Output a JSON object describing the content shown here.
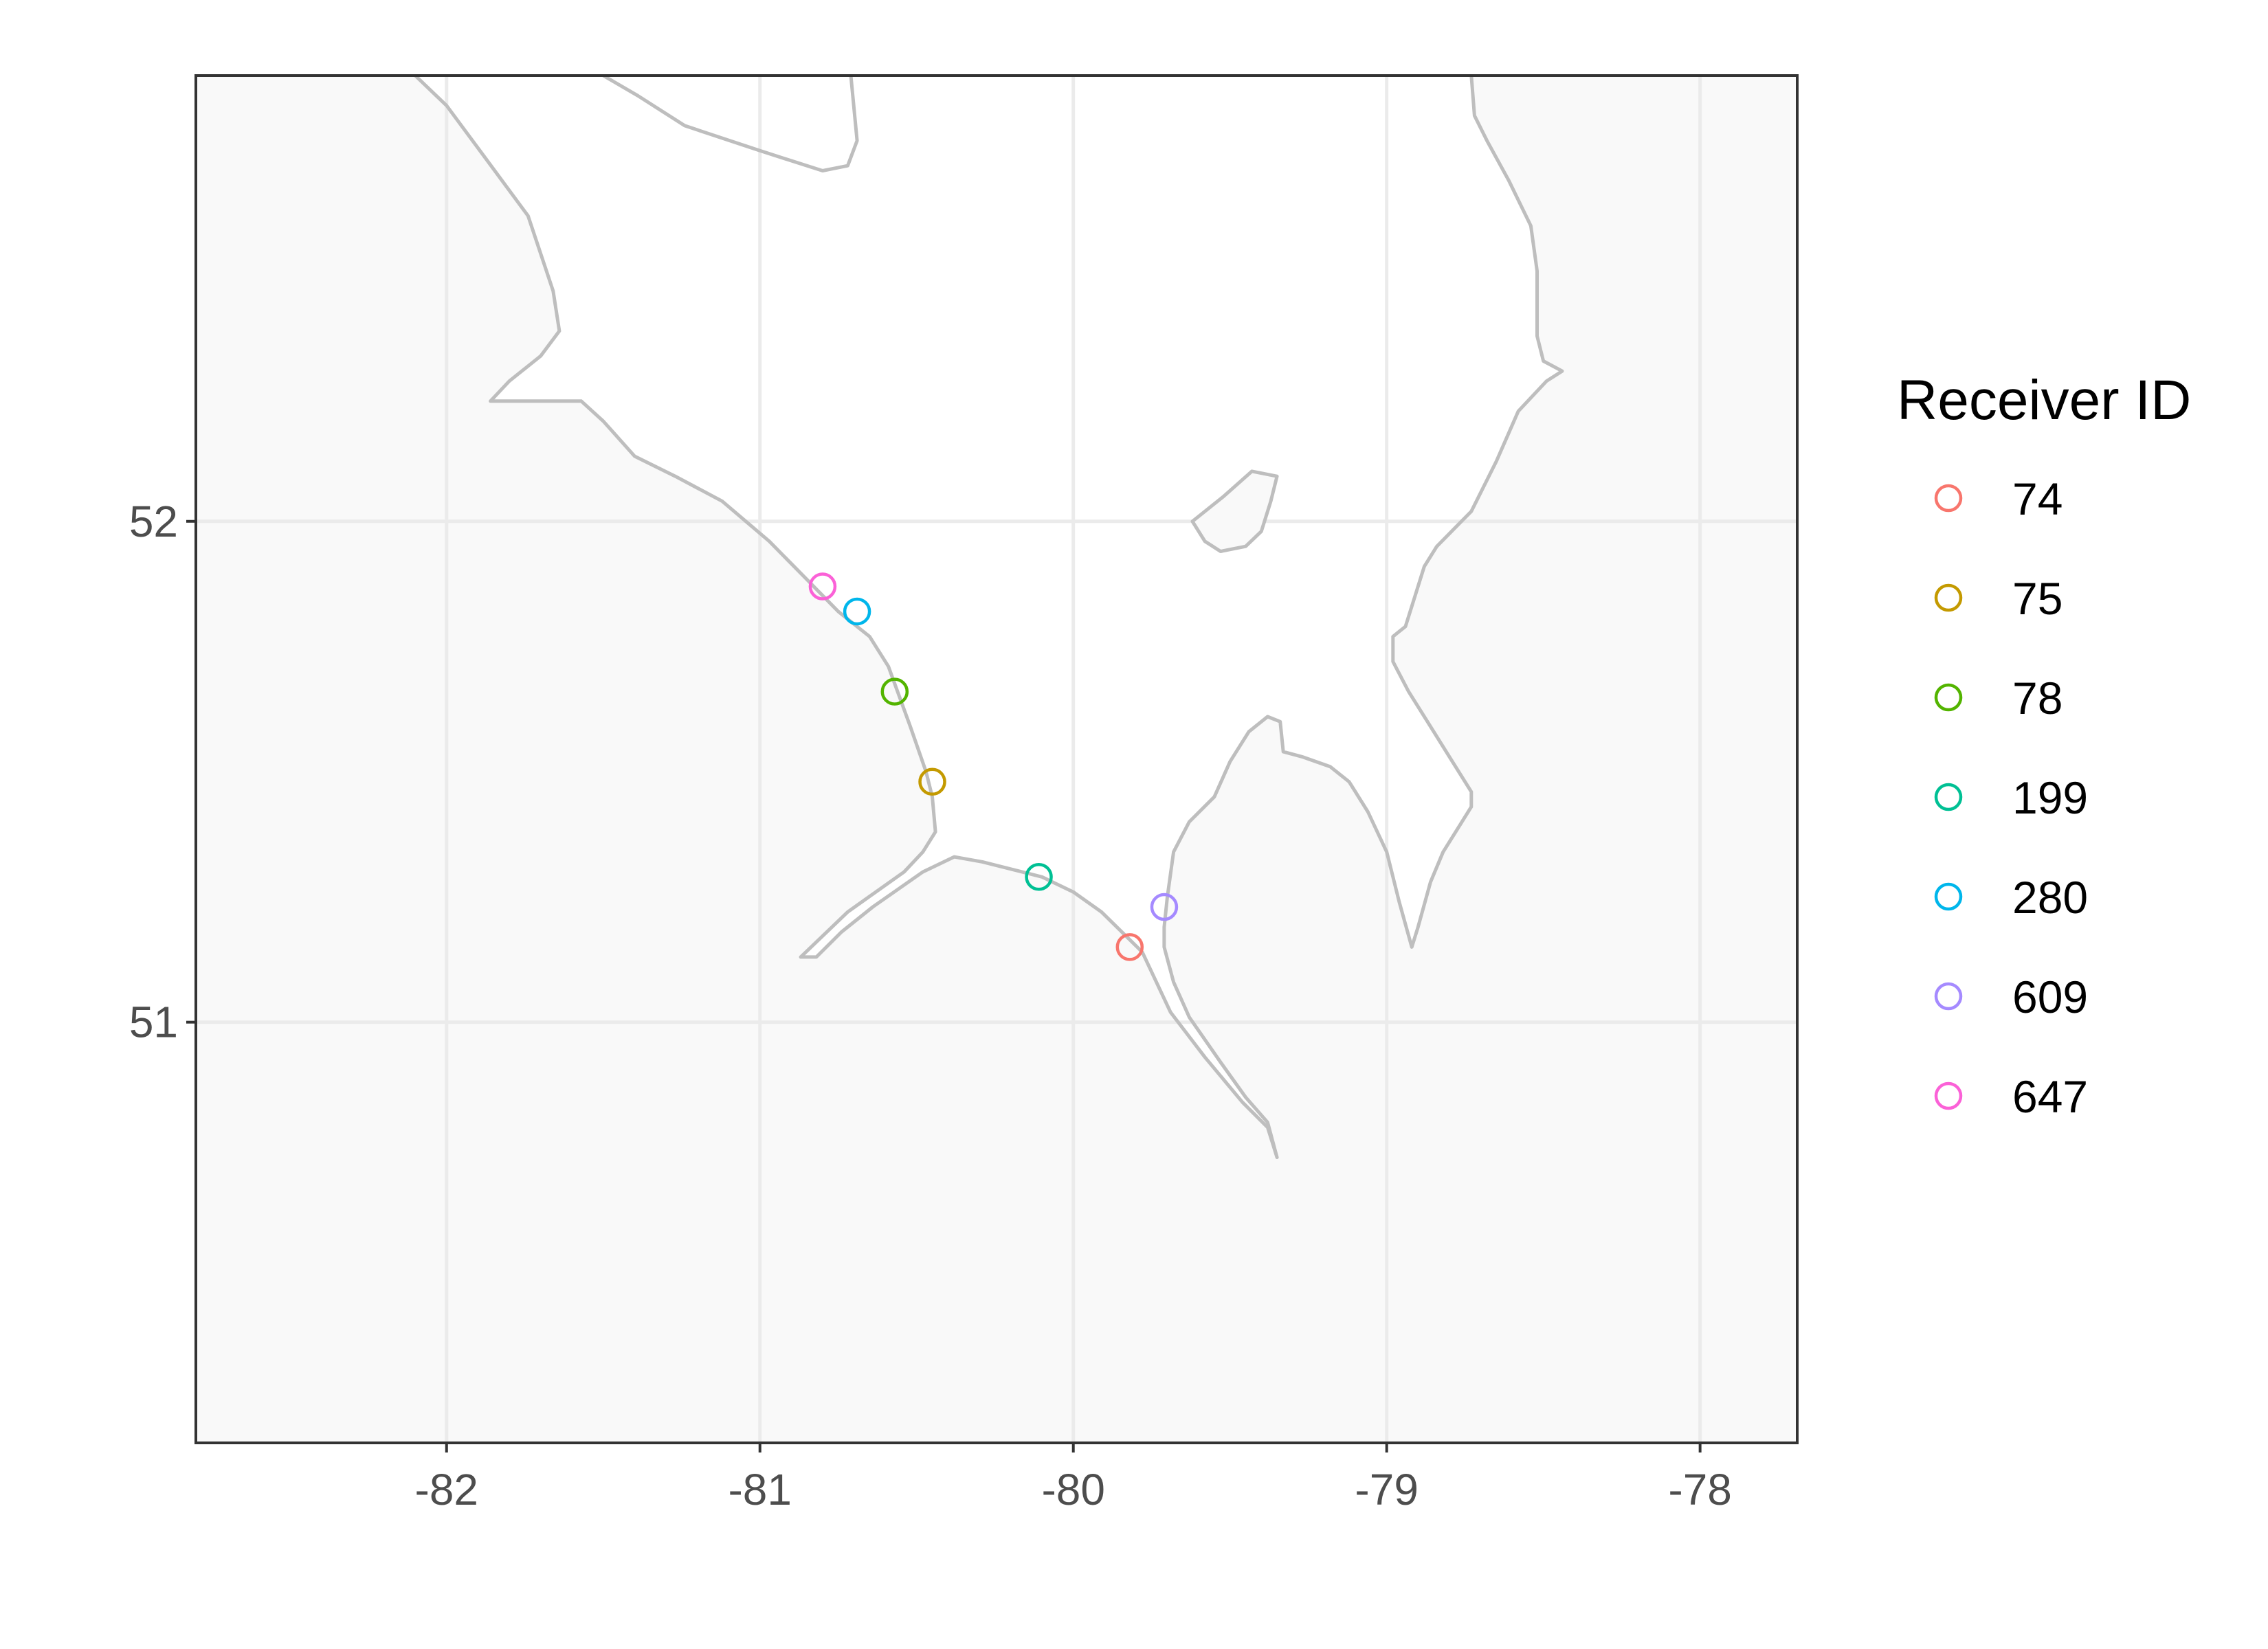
{
  "chart_data": {
    "type": "scatter",
    "title": "",
    "xlabel": "",
    "ylabel": "",
    "xlim": [
      -82.8,
      -77.69
    ],
    "ylim": [
      50.16,
      52.89
    ],
    "x_ticks": [
      -82,
      -81,
      -80,
      -79,
      -78
    ],
    "x_tick_labels": [
      "-82",
      "-81",
      "-80",
      "-79",
      "-78"
    ],
    "y_ticks": [
      51,
      52
    ],
    "y_tick_labels": [
      "51",
      "52"
    ],
    "grid": true,
    "panel_background": "#f9f9f9",
    "water_color": "#ffffff",
    "coastline_color": "#bebebe",
    "grid_color": "#ebebeb",
    "legend": {
      "title": "Receiver ID",
      "placement": "right"
    },
    "series": [
      {
        "name": "74",
        "color": "#F8766D",
        "x": [
          -79.82
        ],
        "y": [
          51.15
        ]
      },
      {
        "name": "75",
        "color": "#C49A00",
        "x": [
          -80.45
        ],
        "y": [
          51.48
        ]
      },
      {
        "name": "78",
        "color": "#53B400",
        "x": [
          -80.57
        ],
        "y": [
          51.66
        ]
      },
      {
        "name": "199",
        "color": "#00C094",
        "x": [
          -80.11
        ],
        "y": [
          51.29
        ]
      },
      {
        "name": "280",
        "color": "#00B6EB",
        "x": [
          -80.69
        ],
        "y": [
          51.82
        ]
      },
      {
        "name": "609",
        "color": "#A58AFF",
        "x": [
          -79.71
        ],
        "y": [
          51.23
        ]
      },
      {
        "name": "647",
        "color": "#FB61D7",
        "x": [
          -80.8
        ],
        "y": [
          51.87
        ]
      }
    ],
    "water_polygons": [
      {
        "name": "james-bay",
        "points": [
          [
            -82.1,
            52.89
          ],
          [
            -82.0,
            52.83
          ],
          [
            -81.87,
            52.72
          ],
          [
            -81.74,
            52.61
          ],
          [
            -81.66,
            52.46
          ],
          [
            -81.64,
            52.38
          ],
          [
            -81.7,
            52.33
          ],
          [
            -81.8,
            52.28
          ],
          [
            -81.86,
            52.24
          ],
          [
            -81.7,
            52.24
          ],
          [
            -81.57,
            52.24
          ],
          [
            -81.5,
            52.2
          ],
          [
            -81.4,
            52.13
          ],
          [
            -81.27,
            52.09
          ],
          [
            -81.12,
            52.04
          ],
          [
            -80.97,
            51.96
          ],
          [
            -80.86,
            51.89
          ],
          [
            -80.75,
            51.82
          ],
          [
            -80.65,
            51.77
          ],
          [
            -80.59,
            51.71
          ],
          [
            -80.52,
            51.59
          ],
          [
            -80.47,
            51.5
          ],
          [
            -80.45,
            51.45
          ],
          [
            -80.44,
            51.38
          ],
          [
            -80.48,
            51.34
          ],
          [
            -80.54,
            51.3
          ],
          [
            -80.72,
            51.22
          ],
          [
            -80.87,
            51.13
          ],
          [
            -80.82,
            51.13
          ],
          [
            -80.74,
            51.18
          ],
          [
            -80.64,
            51.23
          ],
          [
            -80.48,
            51.3
          ],
          [
            -80.38,
            51.33
          ],
          [
            -80.29,
            51.32
          ],
          [
            -80.1,
            51.29
          ],
          [
            -80.0,
            51.26
          ],
          [
            -79.91,
            51.22
          ],
          [
            -79.78,
            51.14
          ],
          [
            -79.69,
            51.02
          ],
          [
            -79.58,
            50.93
          ],
          [
            -79.46,
            50.84
          ],
          [
            -79.38,
            50.79
          ],
          [
            -79.35,
            50.73
          ],
          [
            -79.38,
            50.8
          ],
          [
            -79.45,
            50.85
          ],
          [
            -79.53,
            50.92
          ],
          [
            -79.63,
            51.01
          ],
          [
            -79.68,
            51.08
          ],
          [
            -79.71,
            51.15
          ],
          [
            -79.71,
            51.19
          ],
          [
            -79.7,
            51.25
          ],
          [
            -79.68,
            51.34
          ],
          [
            -79.63,
            51.4
          ],
          [
            -79.55,
            51.45
          ],
          [
            -79.5,
            51.52
          ],
          [
            -79.44,
            51.58
          ],
          [
            -79.38,
            51.61
          ],
          [
            -79.34,
            51.6
          ],
          [
            -79.33,
            51.54
          ],
          [
            -79.27,
            51.53
          ],
          [
            -79.18,
            51.51
          ],
          [
            -79.12,
            51.48
          ],
          [
            -79.06,
            51.42
          ],
          [
            -79.0,
            51.34
          ],
          [
            -78.96,
            51.24
          ],
          [
            -78.92,
            51.15
          ],
          [
            -78.9,
            51.19
          ],
          [
            -78.86,
            51.28
          ],
          [
            -78.82,
            51.34
          ],
          [
            -78.77,
            51.39
          ],
          [
            -78.73,
            51.43
          ],
          [
            -78.73,
            51.46
          ],
          [
            -78.8,
            51.53
          ],
          [
            -78.87,
            51.6
          ],
          [
            -78.93,
            51.66
          ],
          [
            -78.98,
            51.72
          ],
          [
            -78.98,
            51.77
          ],
          [
            -78.94,
            51.79
          ],
          [
            -78.91,
            51.85
          ],
          [
            -78.88,
            51.91
          ],
          [
            -78.84,
            51.95
          ],
          [
            -78.73,
            52.02
          ],
          [
            -78.65,
            52.12
          ],
          [
            -78.58,
            52.22
          ],
          [
            -78.49,
            52.28
          ],
          [
            -78.44,
            52.3
          ],
          [
            -78.5,
            52.32
          ],
          [
            -78.52,
            52.37
          ],
          [
            -78.52,
            52.5
          ],
          [
            -78.54,
            52.59
          ],
          [
            -78.61,
            52.68
          ],
          [
            -78.68,
            52.76
          ],
          [
            -78.72,
            52.81
          ],
          [
            -78.73,
            52.89
          ]
        ]
      },
      {
        "name": "upper-inlet",
        "points": [
          [
            -81.5,
            52.89
          ],
          [
            -81.39,
            52.85
          ],
          [
            -81.24,
            52.79
          ],
          [
            -81.0,
            52.74
          ],
          [
            -80.8,
            52.7
          ],
          [
            -80.72,
            52.71
          ],
          [
            -80.69,
            52.76
          ],
          [
            -80.71,
            52.89
          ]
        ]
      }
    ],
    "land_polygons": [
      {
        "name": "akimiski-island",
        "points": [
          [
            -79.62,
            52.0
          ],
          [
            -79.52,
            52.05
          ],
          [
            -79.43,
            52.1
          ],
          [
            -79.35,
            52.09
          ],
          [
            -79.37,
            52.04
          ],
          [
            -79.4,
            51.98
          ],
          [
            -79.45,
            51.95
          ],
          [
            -79.53,
            51.94
          ],
          [
            -79.58,
            51.96
          ],
          [
            -79.62,
            52.0
          ]
        ]
      }
    ]
  }
}
